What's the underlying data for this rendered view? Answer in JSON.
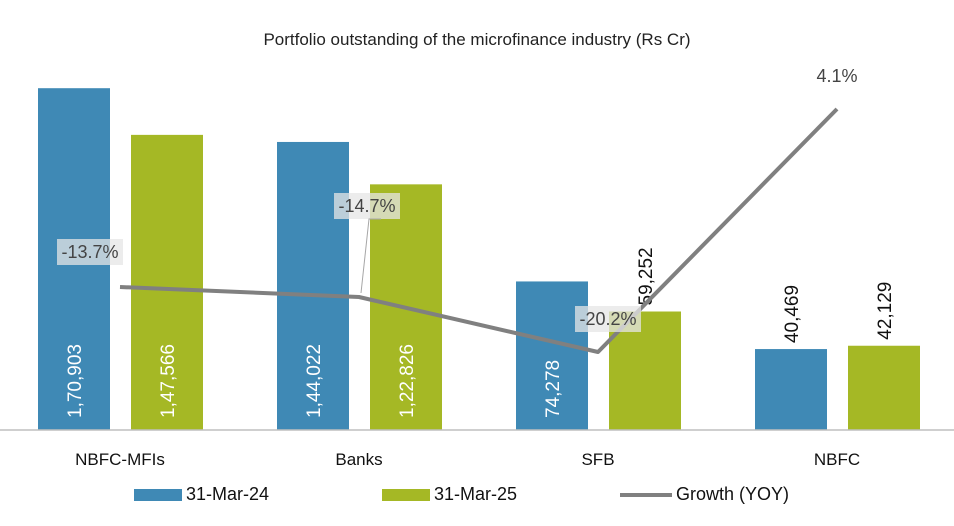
{
  "chart_data": {
    "type": "bar",
    "title": "Portfolio outstanding of the microfinance industry (Rs Cr)",
    "categories": [
      "NBFC-MFIs",
      "Banks",
      "SFB",
      "NBFC"
    ],
    "series": [
      {
        "name": "31-Mar-24",
        "color": "#3f89b5",
        "values": [
          170903,
          144022,
          74278,
          40469
        ],
        "labels": [
          "1,70,903",
          "1,44,022",
          "74,278",
          "40,469"
        ]
      },
      {
        "name": "31-Mar-25",
        "color": "#a5b825",
        "values": [
          147566,
          122826,
          59252,
          42129
        ],
        "labels": [
          "1,47,566",
          "1,22,826",
          "59,252",
          "42,129"
        ]
      }
    ],
    "line_series": {
      "name": "Growth (YOY)",
      "color": "#808080",
      "values": [
        -13.7,
        -14.7,
        -20.2,
        4.1
      ],
      "labels": [
        "-13.7%",
        "-14.7%",
        "-20.2%",
        "4.1%"
      ]
    },
    "ylim": [
      0,
      180000
    ],
    "line_ylim": [
      -28,
      8
    ],
    "grid": false,
    "legend_position": "bottom",
    "xlabel": "",
    "ylabel": ""
  }
}
